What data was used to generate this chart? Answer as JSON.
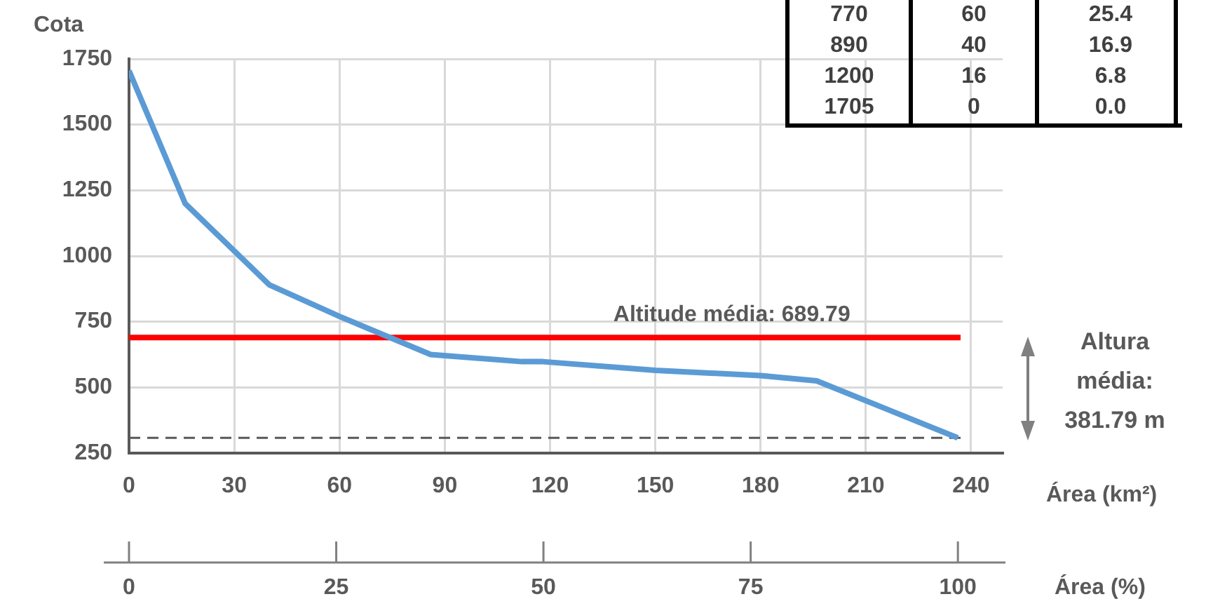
{
  "chart_data": {
    "type": "line",
    "ylabel": "Cota",
    "xlabel": "Área (km²)",
    "x2label": "Área (%)",
    "x": [
      0,
      16,
      40,
      60,
      86,
      112,
      118,
      150,
      180,
      196,
      236.2
    ],
    "series": [
      {
        "color": "#5b9bd5",
        "values": [
          1705,
          1200,
          890,
          770,
          625,
          598,
          598,
          565,
          545,
          525,
          308
        ]
      }
    ],
    "xlim": [
      0,
      249
    ],
    "xticks": [
      0,
      30,
      60,
      90,
      120,
      150,
      180,
      210,
      240
    ],
    "x2lim": [
      0,
      105.4
    ],
    "x2ticks": [
      0,
      25,
      50,
      75,
      100
    ],
    "ylim": [
      250,
      1750
    ],
    "yticks": [
      250,
      500,
      750,
      1000,
      1250,
      1500,
      1750
    ],
    "grid": true,
    "legend": false,
    "marker": "none",
    "line_style": "solid",
    "ref_lines": [
      {
        "axis": "y",
        "value": 689.79,
        "label": "Altitude média: 689.79",
        "color": "#ff0000",
        "line_style": "solid"
      },
      {
        "axis": "y",
        "value": 308,
        "color": "#595959",
        "line_style": "dashed"
      }
    ],
    "annotations": [
      "Altura média: 381.79 m",
      "770",
      "60",
      "25.4",
      "890",
      "40",
      "16.9",
      "1200",
      "16",
      "6.8",
      "1705",
      "0",
      "0.0"
    ]
  }
}
